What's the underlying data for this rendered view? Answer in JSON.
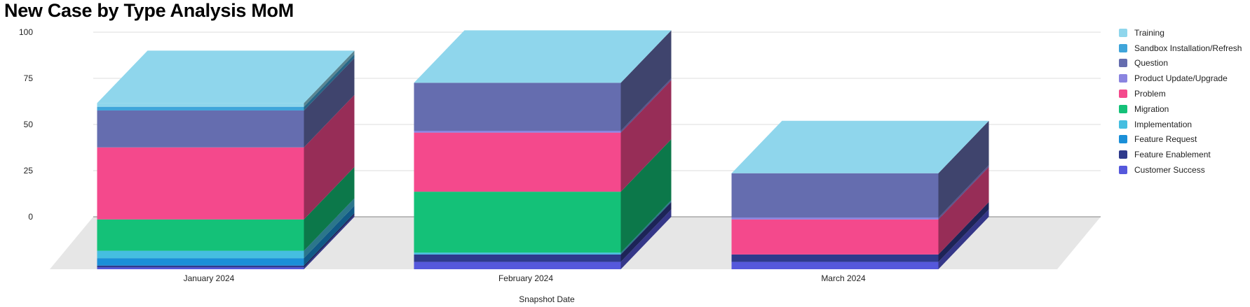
{
  "title": "New Case by Type Analysis MoM",
  "chart_data": {
    "type": "bar",
    "stacked": true,
    "style": "3d",
    "xlabel": "Snapshot Date",
    "ylabel": "",
    "ylim": [
      0,
      100
    ],
    "yticks": [
      0,
      25,
      50,
      75,
      100
    ],
    "grid": true,
    "legend_position": "right",
    "categories": [
      "January 2024",
      "February 2024",
      "March 2024"
    ],
    "series": [
      {
        "name": "Customer Success",
        "color": "#5558DC",
        "values": [
          1,
          4,
          4
        ]
      },
      {
        "name": "Feature Enablement",
        "color": "#2E3A8C",
        "values": [
          1,
          4,
          4
        ]
      },
      {
        "name": "Feature Request",
        "color": "#1A8FD8",
        "values": [
          4,
          0,
          0
        ]
      },
      {
        "name": "Implementation",
        "color": "#45BEE0",
        "values": [
          4,
          1,
          0
        ]
      },
      {
        "name": "Migration",
        "color": "#14C178",
        "values": [
          17,
          33,
          0
        ]
      },
      {
        "name": "Problem",
        "color": "#F4498C",
        "values": [
          39,
          32,
          19
        ]
      },
      {
        "name": "Product Update/Upgrade",
        "color": "#8A84E0",
        "values": [
          0,
          1,
          1
        ]
      },
      {
        "name": "Question",
        "color": "#656DAF",
        "values": [
          20,
          26,
          24
        ]
      },
      {
        "name": "Sandbox Installation/Refresh",
        "color": "#3FA5DA",
        "values": [
          2,
          0,
          0
        ]
      },
      {
        "name": "Training",
        "color": "#8FD6EC",
        "values": [
          2,
          0,
          0
        ]
      }
    ]
  }
}
